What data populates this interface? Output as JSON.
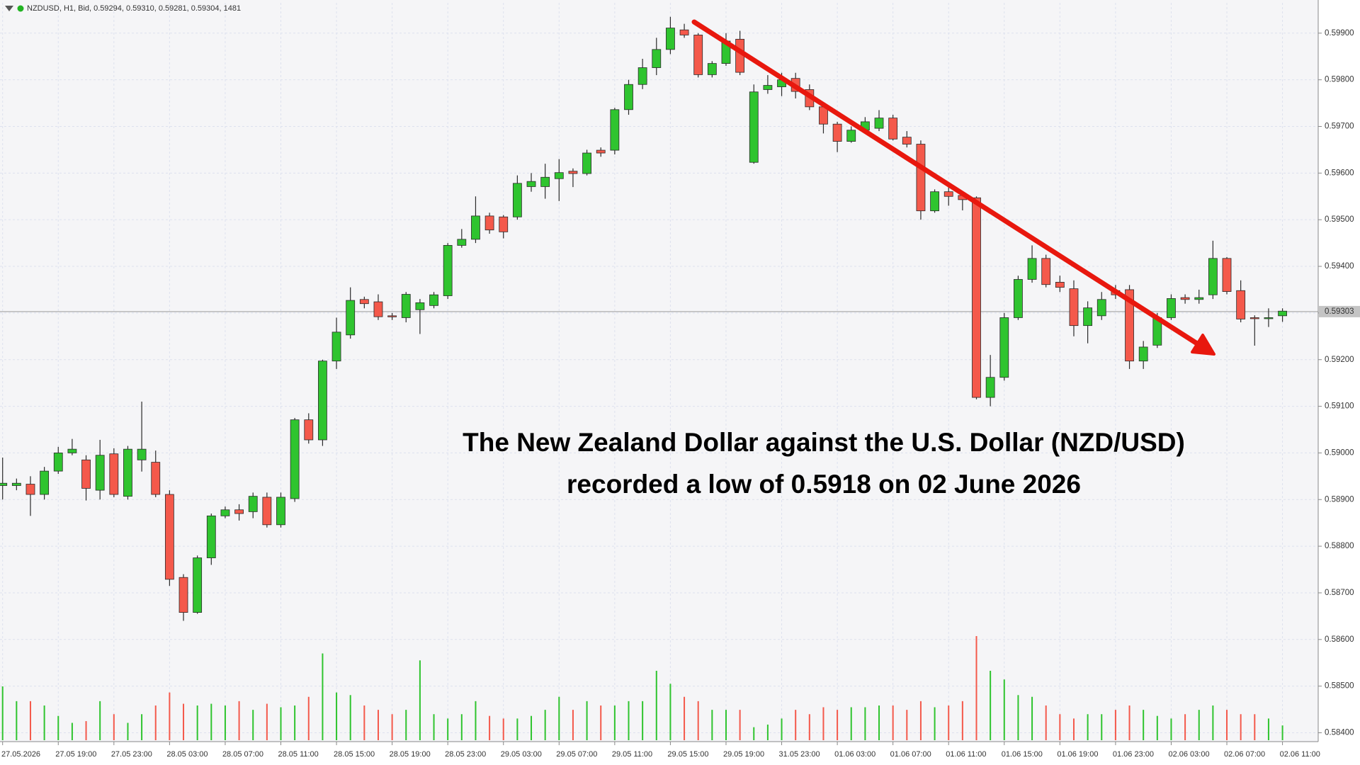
{
  "chart_data": {
    "type": "candlestick",
    "header": "NZDUSD, H1, Bid, 0.59294, 0.59310, 0.59281, 0.59304, 1481",
    "annotation": [
      "The New Zealand Dollar against the U.S. Dollar (NZD/USD)",
      "recorded a low of 0.5918 on 02 June 2026"
    ],
    "categories": [
      "27.05.2026",
      null,
      null,
      null,
      "27.05 19:00",
      null,
      null,
      null,
      "27.05 23:00",
      null,
      null,
      null,
      "28.05 03:00",
      null,
      null,
      null,
      "28.05 07:00",
      null,
      null,
      null,
      "28.05 11:00",
      null,
      null,
      null,
      "28.05 15:00",
      null,
      null,
      null,
      "28.05 19:00",
      null,
      null,
      null,
      "28.05 23:00",
      null,
      null,
      null,
      "29.05 03:00",
      null,
      null,
      null,
      "29.05 07:00",
      null,
      null,
      null,
      "29.05 11:00",
      null,
      null,
      null,
      "29.05 15:00",
      null,
      null,
      null,
      "29.05 19:00",
      null,
      null,
      null,
      "31.05 23:00",
      null,
      null,
      null,
      "01.06 03:00",
      null,
      null,
      null,
      "01.06 07:00",
      null,
      null,
      null,
      "01.06 11:00",
      null,
      null,
      null,
      "01.06 15:00",
      null,
      null,
      null,
      "01.06 19:00",
      null,
      null,
      null,
      "01.06 23:00",
      null,
      null,
      null,
      "02.06 03:00",
      null,
      null,
      null,
      "02.06 07:00",
      null,
      null,
      null,
      "02.06 11:00"
    ],
    "open": [
      0.5893,
      0.5893,
      0.58933,
      0.58911,
      0.58961,
      0.59,
      0.58985,
      0.5892,
      0.58998,
      0.58907,
      0.58985,
      0.5898,
      0.58911,
      0.58733,
      0.58658,
      0.58775,
      0.58865,
      0.58878,
      0.58874,
      0.58905,
      0.58846,
      0.58902,
      0.59071,
      0.59028,
      0.59197,
      0.59253,
      0.59329,
      0.59324,
      0.59294,
      0.5929,
      0.59307,
      0.59316,
      0.59337,
      0.59445,
      0.59458,
      0.59508,
      0.59506,
      0.59506,
      0.59571,
      0.59571,
      0.59588,
      0.59604,
      0.59599,
      0.59649,
      0.59649,
      0.59736,
      0.5979,
      0.59826,
      0.59865,
      0.59907,
      0.59896,
      0.59811,
      0.59835,
      0.59887,
      0.59623,
      0.59779,
      0.59785,
      0.59803,
      0.59779,
      0.59742,
      0.59705,
      0.59668,
      0.59692,
      0.59696,
      0.59718,
      0.59677,
      0.59662,
      0.59519,
      0.5956,
      0.59552,
      0.59547,
      0.59119,
      0.59162,
      0.5929,
      0.59372,
      0.59417,
      0.59366,
      0.59352,
      0.59273,
      0.59294,
      0.59348,
      0.5935,
      0.59197,
      0.59231,
      0.5929,
      0.59333,
      0.59329,
      0.59339,
      0.59417,
      0.59348,
      0.5929,
      0.59288,
      0.59294
    ],
    "high": [
      0.5899,
      0.58945,
      0.5895,
      0.5897,
      0.59013,
      0.5903,
      0.58995,
      0.59028,
      0.5901,
      0.59015,
      0.5911,
      0.59005,
      0.5892,
      0.5874,
      0.5878,
      0.5887,
      0.58885,
      0.5889,
      0.58915,
      0.58915,
      0.58915,
      0.59075,
      0.59085,
      0.592,
      0.5929,
      0.59355,
      0.59335,
      0.5934,
      0.593,
      0.59345,
      0.5933,
      0.59345,
      0.5945,
      0.5948,
      0.5955,
      0.59515,
      0.5951,
      0.59595,
      0.596,
      0.5962,
      0.5963,
      0.5961,
      0.5965,
      0.59655,
      0.5974,
      0.598,
      0.59845,
      0.5989,
      0.59935,
      0.5992,
      0.599,
      0.5984,
      0.599,
      0.59905,
      0.5979,
      0.5981,
      0.59815,
      0.59815,
      0.5979,
      0.5975,
      0.5971,
      0.597,
      0.5972,
      0.59735,
      0.59725,
      0.5969,
      0.5967,
      0.59565,
      0.5957,
      0.5956,
      0.5955,
      0.5921,
      0.593,
      0.5938,
      0.59445,
      0.59425,
      0.5938,
      0.5937,
      0.59325,
      0.59345,
      0.5936,
      0.5936,
      0.5924,
      0.593,
      0.5934,
      0.5934,
      0.5935,
      0.59455,
      0.5942,
      0.5937,
      0.59295,
      0.5931,
      0.5931
    ],
    "low": [
      0.589,
      0.5892,
      0.58865,
      0.589,
      0.58955,
      0.58995,
      0.58898,
      0.589,
      0.58905,
      0.589,
      0.5896,
      0.58905,
      0.58715,
      0.5864,
      0.58655,
      0.5876,
      0.5886,
      0.58855,
      0.5886,
      0.5884,
      0.5884,
      0.58895,
      0.5902,
      0.59015,
      0.5918,
      0.59245,
      0.5931,
      0.59285,
      0.59285,
      0.5928,
      0.59255,
      0.5931,
      0.5933,
      0.5944,
      0.5945,
      0.5947,
      0.5946,
      0.595,
      0.5956,
      0.59545,
      0.5954,
      0.5957,
      0.59595,
      0.59635,
      0.5964,
      0.59725,
      0.5978,
      0.5981,
      0.59855,
      0.5989,
      0.59805,
      0.59805,
      0.5983,
      0.5981,
      0.5962,
      0.5977,
      0.59765,
      0.5976,
      0.59735,
      0.59685,
      0.59645,
      0.59665,
      0.59685,
      0.5969,
      0.5967,
      0.59655,
      0.595,
      0.59515,
      0.5953,
      0.5952,
      0.59115,
      0.591,
      0.59155,
      0.59285,
      0.59365,
      0.59355,
      0.59345,
      0.5925,
      0.59235,
      0.59285,
      0.5933,
      0.5918,
      0.5918,
      0.59225,
      0.59285,
      0.5932,
      0.5932,
      0.5933,
      0.5934,
      0.5928,
      0.5923,
      0.5927,
      0.59281
    ],
    "close": [
      0.58935,
      0.58935,
      0.58911,
      0.58961,
      0.59,
      0.59008,
      0.58924,
      0.58995,
      0.58911,
      0.59008,
      0.59008,
      0.58911,
      0.58729,
      0.58658,
      0.58775,
      0.58865,
      0.58878,
      0.5887,
      0.58907,
      0.58846,
      0.58905,
      0.59071,
      0.59028,
      0.59197,
      0.59259,
      0.59327,
      0.5932,
      0.59292,
      0.59292,
      0.5934,
      0.59322,
      0.59339,
      0.59445,
      0.59458,
      0.59508,
      0.59478,
      0.59474,
      0.59578,
      0.59582,
      0.59591,
      0.59601,
      0.59599,
      0.59643,
      0.59643,
      0.59736,
      0.5979,
      0.59826,
      0.59865,
      0.59911,
      0.59896,
      0.59811,
      0.59835,
      0.59883,
      0.59816,
      0.59774,
      0.59788,
      0.598,
      0.59775,
      0.59742,
      0.59705,
      0.59668,
      0.59692,
      0.5971,
      0.59718,
      0.59673,
      0.59662,
      0.59519,
      0.5956,
      0.5955,
      0.59543,
      0.59119,
      0.59162,
      0.5929,
      0.59372,
      0.59417,
      0.59361,
      0.59355,
      0.59273,
      0.59311,
      0.59329,
      0.59339,
      0.59197,
      0.59227,
      0.5929,
      0.59331,
      0.59329,
      0.59333,
      0.59417,
      0.59346,
      0.59287,
      0.59288,
      0.5929,
      0.59304
    ],
    "volume": [
      5394,
      3915,
      3915,
      3480,
      2436,
      1740,
      1914,
      3915,
      2610,
      1740,
      2610,
      3480,
      4785,
      3654,
      3480,
      3654,
      3480,
      3915,
      3045,
      3654,
      3306,
      3480,
      4350,
      8700,
      4785,
      4524,
      3480,
      3045,
      2610,
      3045,
      8004,
      2610,
      2175,
      2610,
      3915,
      2436,
      2175,
      2175,
      2436,
      3045,
      4350,
      3045,
      3915,
      3480,
      3480,
      3915,
      3915,
      6960,
      5655,
      4350,
      3915,
      3045,
      3045,
      3045,
      1305,
      1566,
      2175,
      3045,
      2610,
      3306,
      3045,
      3306,
      3306,
      3480,
      3480,
      3045,
      3915,
      3306,
      3480,
      3915,
      10440,
      6960,
      6090,
      4524,
      4350,
      3480,
      2610,
      2175,
      2610,
      2610,
      3045,
      3480,
      3045,
      2436,
      2175,
      2610,
      3045,
      3480,
      3045,
      2610,
      2610,
      2175,
      1481
    ],
    "up_color": "#2fc42f",
    "down_color": "#f4594b",
    "ylim": [
      0.58381,
      0.59965
    ],
    "yticks": [
      {
        "value": 0.584,
        "label": "0.58400"
      },
      {
        "value": 0.585,
        "label": "0.58500"
      },
      {
        "value": 0.586,
        "label": "0.58600"
      },
      {
        "value": 0.587,
        "label": "0.58700"
      },
      {
        "value": 0.588,
        "label": "0.58800"
      },
      {
        "value": 0.589,
        "label": "0.58900"
      },
      {
        "value": 0.59,
        "label": "0.59000"
      },
      {
        "value": 0.591,
        "label": "0.59100"
      },
      {
        "value": 0.592,
        "label": "0.59200"
      },
      {
        "value": 0.593,
        "label": "0.59300"
      },
      {
        "value": 0.594,
        "label": "0.59400"
      },
      {
        "value": 0.595,
        "label": "0.59500"
      },
      {
        "value": 0.596,
        "label": "0.59600"
      },
      {
        "value": 0.597,
        "label": "0.59700"
      },
      {
        "value": 0.598,
        "label": "0.59800"
      },
      {
        "value": 0.599,
        "label": "0.59900"
      }
    ],
    "current_price": {
      "value": 0.59303,
      "label": "0.59303"
    },
    "grid": true
  }
}
